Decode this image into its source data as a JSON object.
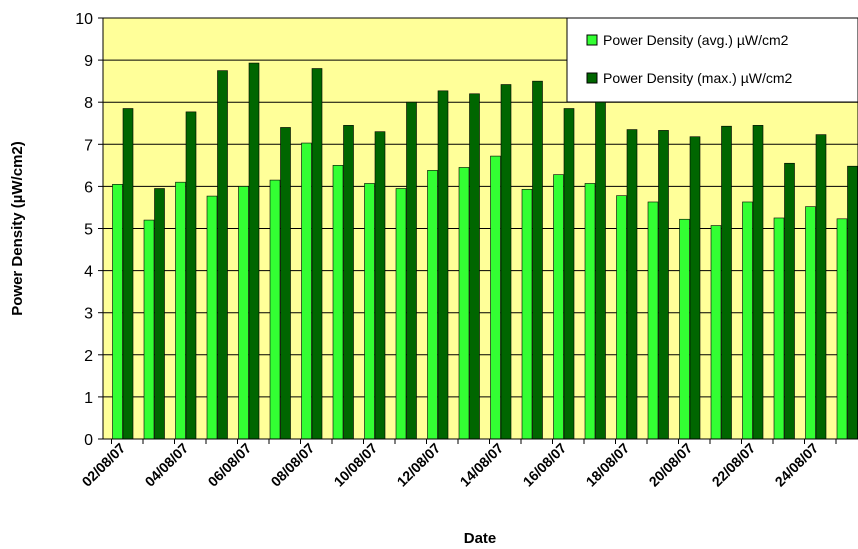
{
  "chart_data": {
    "type": "bar",
    "xlabel": "Date",
    "ylabel": "Power Density (µW/cm2)",
    "ylim": [
      0,
      10
    ],
    "yticks": [
      0,
      1,
      2,
      3,
      4,
      5,
      6,
      7,
      8,
      9,
      10
    ],
    "grid": true,
    "legend_position": "top-right",
    "x_tick_labels": [
      "02/08/07",
      "04/08/07",
      "06/08/07",
      "08/08/07",
      "10/08/07",
      "12/08/07",
      "14/08/07",
      "16/08/07",
      "18/08/07",
      "20/08/07",
      "22/08/07",
      "24/08/07"
    ],
    "series": [
      {
        "name": "Power Density (avg.) µW/cm2",
        "color": "#33ff33",
        "values": [
          6.05,
          5.2,
          6.1,
          5.77,
          6.0,
          6.15,
          7.03,
          6.5,
          6.07,
          5.95,
          6.38,
          6.45,
          6.72,
          5.93,
          6.28,
          6.07,
          5.78,
          5.63,
          5.22,
          5.07,
          5.63,
          5.25,
          5.52,
          5.23
        ]
      },
      {
        "name": "Power Density (max.) µW/cm2",
        "color": "#006600",
        "values": [
          7.85,
          5.95,
          7.77,
          8.75,
          8.93,
          7.4,
          8.8,
          7.45,
          7.3,
          8.0,
          8.27,
          8.2,
          8.42,
          8.5,
          7.85,
          8.0,
          7.35,
          7.33,
          7.18,
          7.43,
          7.45,
          6.55,
          7.23,
          6.48
        ]
      }
    ]
  },
  "colors": {
    "plot_background": "#ffff99",
    "grid": "#000000"
  }
}
